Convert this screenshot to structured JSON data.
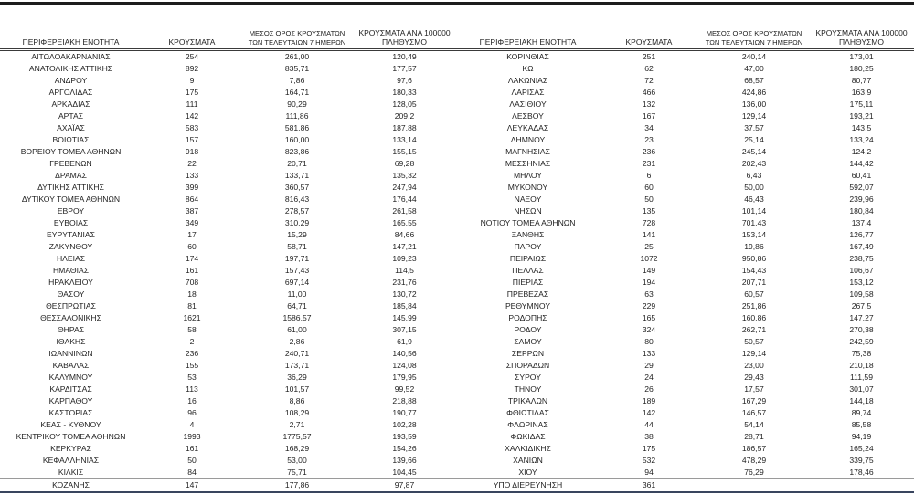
{
  "headers": {
    "region": "ΠΕΡΙΦΕΡΕΙΑΚΗ ΕΝΟΤΗΤΑ",
    "cases": "ΚΡΟΥΣΜΑΤΑ",
    "avg7_line1": "ΜΕΣΟΣ ΟΡΟΣ ΚΡΟΥΣΜΑΤΩΝ",
    "avg7_line2": "ΤΩΝ ΤΕΛΕΥΤΑΙΩΝ 7 ΗΜΕΡΩΝ",
    "per100k_line1": "ΚΡΟΥΣΜΑΤΑ ΑΝΑ 100000",
    "per100k_line2": "ΠΛΗΘΥΣΜΟ"
  },
  "colors": {
    "top_rule": "#1c1c1c",
    "header_rule": "#3a3a3a",
    "bottom_rule": "#39455e",
    "text": "#1f1f1f"
  },
  "tables": {
    "left": {
      "rows": [
        [
          "ΑΙΤΩΛΟΑΚΑΡΝΑΝΙΑΣ",
          "254",
          "261,00",
          "120,49"
        ],
        [
          "ΑΝΑΤΟΛΙΚΗΣ ΑΤΤΙΚΗΣ",
          "892",
          "835,71",
          "177,57"
        ],
        [
          "ΑΝΔΡΟΥ",
          "9",
          "7,86",
          "97,6"
        ],
        [
          "ΑΡΓΟΛΙΔΑΣ",
          "175",
          "164,71",
          "180,33"
        ],
        [
          "ΑΡΚΑΔΙΑΣ",
          "111",
          "90,29",
          "128,05"
        ],
        [
          "ΑΡΤΑΣ",
          "142",
          "111,86",
          "209,2"
        ],
        [
          "ΑΧΑΪΑΣ",
          "583",
          "581,86",
          "187,88"
        ],
        [
          "ΒΟΙΩΤΙΑΣ",
          "157",
          "160,00",
          "133,14"
        ],
        [
          "ΒΟΡΕΙΟΥ ΤΟΜΕΑ ΑΘΗΝΩΝ",
          "918",
          "823,86",
          "155,15"
        ],
        [
          "ΓΡΕΒΕΝΩΝ",
          "22",
          "20,71",
          "69,28"
        ],
        [
          "ΔΡΑΜΑΣ",
          "133",
          "133,71",
          "135,32"
        ],
        [
          "ΔΥΤΙΚΗΣ ΑΤΤΙΚΗΣ",
          "399",
          "360,57",
          "247,94"
        ],
        [
          "ΔΥΤΙΚΟΥ ΤΟΜΕΑ ΑΘΗΝΩΝ",
          "864",
          "816,43",
          "176,44"
        ],
        [
          "ΕΒΡΟΥ",
          "387",
          "278,57",
          "261,58"
        ],
        [
          "ΕΥΒΟΙΑΣ",
          "349",
          "310,29",
          "165,55"
        ],
        [
          "ΕΥΡΥΤΑΝΙΑΣ",
          "17",
          "15,29",
          "84,66"
        ],
        [
          "ΖΑΚΥΝΘΟΥ",
          "60",
          "58,71",
          "147,21"
        ],
        [
          "ΗΛΕΙΑΣ",
          "174",
          "197,71",
          "109,23"
        ],
        [
          "ΗΜΑΘΙΑΣ",
          "161",
          "157,43",
          "114,5"
        ],
        [
          "ΗΡΑΚΛΕΙΟΥ",
          "708",
          "697,14",
          "231,76"
        ],
        [
          "ΘΑΣΟΥ",
          "18",
          "11,00",
          "130,72"
        ],
        [
          "ΘΕΣΠΡΩΤΙΑΣ",
          "81",
          "64,71",
          "185,84"
        ],
        [
          "ΘΕΣΣΑΛΟΝΙΚΗΣ",
          "1621",
          "1586,57",
          "145,99"
        ],
        [
          "ΘΗΡΑΣ",
          "58",
          "61,00",
          "307,15"
        ],
        [
          "ΙΘΑΚΗΣ",
          "2",
          "2,86",
          "61,9"
        ],
        [
          "ΙΩΑΝΝΙΝΩΝ",
          "236",
          "240,71",
          "140,56"
        ],
        [
          "ΚΑΒΑΛΑΣ",
          "155",
          "173,71",
          "124,08"
        ],
        [
          "ΚΑΛΥΜΝΟΥ",
          "53",
          "36,29",
          "179,95"
        ],
        [
          "ΚΑΡΔΙΤΣΑΣ",
          "113",
          "101,57",
          "99,52"
        ],
        [
          "ΚΑΡΠΑΘΟΥ",
          "16",
          "8,86",
          "218,88"
        ],
        [
          "ΚΑΣΤΟΡΙΑΣ",
          "96",
          "108,29",
          "190,77"
        ],
        [
          "ΚΕΑΣ - ΚΥΘΝΟΥ",
          "4",
          "2,71",
          "102,28"
        ],
        [
          "ΚΕΝΤΡΙΚΟΥ ΤΟΜΕΑ ΑΘΗΝΩΝ",
          "1993",
          "1775,57",
          "193,59"
        ],
        [
          "ΚΕΡΚΥΡΑΣ",
          "161",
          "168,29",
          "154,26"
        ],
        [
          "ΚΕΦΑΛΛΗΝΙΑΣ",
          "50",
          "53,00",
          "139,66"
        ],
        [
          "ΚΙΛΚΙΣ",
          "84",
          "75,71",
          "104,45"
        ],
        [
          "ΚΟΖΑΝΗΣ",
          "147",
          "177,86",
          "97,87"
        ]
      ]
    },
    "right": {
      "rows": [
        [
          "ΚΟΡΙΝΘΙΑΣ",
          "251",
          "240,14",
          "173,01"
        ],
        [
          "ΚΩ",
          "62",
          "47,00",
          "180,25"
        ],
        [
          "ΛΑΚΩΝΙΑΣ",
          "72",
          "68,57",
          "80,77"
        ],
        [
          "ΛΑΡΙΣΑΣ",
          "466",
          "424,86",
          "163,9"
        ],
        [
          "ΛΑΣΙΘΙΟΥ",
          "132",
          "136,00",
          "175,11"
        ],
        [
          "ΛΕΣΒΟΥ",
          "167",
          "129,14",
          "193,21"
        ],
        [
          "ΛΕΥΚΑΔΑΣ",
          "34",
          "37,57",
          "143,5"
        ],
        [
          "ΛΗΜΝΟΥ",
          "23",
          "25,14",
          "133,24"
        ],
        [
          "ΜΑΓΝΗΣΙΑΣ",
          "236",
          "245,14",
          "124,2"
        ],
        [
          "ΜΕΣΣΗΝΙΑΣ",
          "231",
          "202,43",
          "144,42"
        ],
        [
          "ΜΗΛΟΥ",
          "6",
          "6,43",
          "60,41"
        ],
        [
          "ΜΥΚΟΝΟΥ",
          "60",
          "50,00",
          "592,07"
        ],
        [
          "ΝΑΞΟΥ",
          "50",
          "46,43",
          "239,96"
        ],
        [
          "ΝΗΣΩΝ",
          "135",
          "101,14",
          "180,84"
        ],
        [
          "ΝΟΤΙΟΥ ΤΟΜΕΑ ΑΘΗΝΩΝ",
          "728",
          "701,43",
          "137,4"
        ],
        [
          "ΞΑΝΘΗΣ",
          "141",
          "153,14",
          "126,77"
        ],
        [
          "ΠΑΡΟΥ",
          "25",
          "19,86",
          "167,49"
        ],
        [
          "ΠΕΙΡΑΙΩΣ",
          "1072",
          "950,86",
          "238,75"
        ],
        [
          "ΠΕΛΛΑΣ",
          "149",
          "154,43",
          "106,67"
        ],
        [
          "ΠΙΕΡΙΑΣ",
          "194",
          "207,71",
          "153,12"
        ],
        [
          "ΠΡΕΒΕΖΑΣ",
          "63",
          "60,57",
          "109,58"
        ],
        [
          "ΡΕΘΥΜΝΟΥ",
          "229",
          "251,86",
          "267,5"
        ],
        [
          "ΡΟΔΟΠΗΣ",
          "165",
          "160,86",
          "147,27"
        ],
        [
          "ΡΟΔΟΥ",
          "324",
          "262,71",
          "270,38"
        ],
        [
          "ΣΑΜΟΥ",
          "80",
          "50,57",
          "242,59"
        ],
        [
          "ΣΕΡΡΩΝ",
          "133",
          "129,14",
          "75,38"
        ],
        [
          "ΣΠΟΡΑΔΩΝ",
          "29",
          "23,00",
          "210,18"
        ],
        [
          "ΣΥΡΟΥ",
          "24",
          "29,43",
          "111,59"
        ],
        [
          "ΤΗΝΟΥ",
          "26",
          "17,57",
          "301,07"
        ],
        [
          "ΤΡΙΚΑΛΩΝ",
          "189",
          "167,29",
          "144,18"
        ],
        [
          "ΦΘΙΩΤΙΔΑΣ",
          "142",
          "146,57",
          "89,74"
        ],
        [
          "ΦΛΩΡΙΝΑΣ",
          "44",
          "54,14",
          "85,58"
        ],
        [
          "ΦΩΚΙΔΑΣ",
          "38",
          "28,71",
          "94,19"
        ],
        [
          "ΧΑΛΚΙΔΙΚΗΣ",
          "175",
          "186,57",
          "165,24"
        ],
        [
          "ΧΑΝΙΩΝ",
          "532",
          "478,29",
          "339,75"
        ],
        [
          "ΧΙΟΥ",
          "94",
          "76,29",
          "178,46"
        ],
        [
          "ΥΠΟ ΔΙΕΡΕΥΝΗΣΗ",
          "361",
          "",
          ""
        ]
      ]
    }
  }
}
